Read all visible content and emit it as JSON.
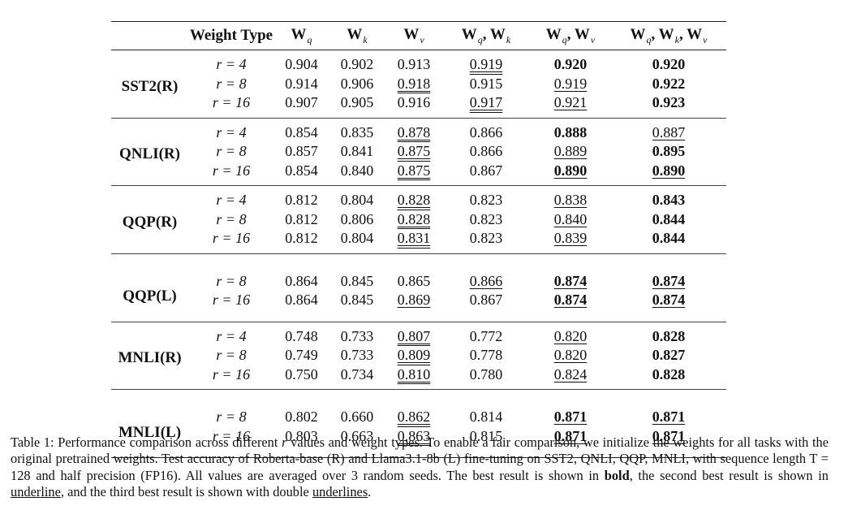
{
  "table": {
    "header": {
      "weight_type": "Weight Type",
      "cols": [
        {
          "main": "W",
          "sub": "q"
        },
        {
          "main": "W",
          "sub": "k"
        },
        {
          "main": "W",
          "sub": "v"
        },
        {
          "main": "W",
          "sub": "q",
          "main2": ", W",
          "sub2": "k"
        },
        {
          "main": "W",
          "sub": "q",
          "main2": ", W",
          "sub2": "v"
        },
        {
          "main": "W",
          "sub": "q",
          "main2": ", W",
          "sub2": "k",
          "main3": ", W",
          "sub3": "v"
        }
      ]
    },
    "groups": [
      {
        "task": "SST2(R)",
        "rows": [
          {
            "r": "r = 4",
            "vals": [
              "0.904",
              "0.902",
              "0.913",
              "0.919",
              "0.920",
              "0.920"
            ],
            "fmt": [
              "",
              "",
              "",
              "u2",
              "b",
              "b"
            ]
          },
          {
            "r": "r = 8",
            "vals": [
              "0.914",
              "0.906",
              "0.918",
              "0.915",
              "0.919",
              "0.922"
            ],
            "fmt": [
              "",
              "",
              "u2",
              "",
              "u1",
              "b"
            ]
          },
          {
            "r": "r = 16",
            "vals": [
              "0.907",
              "0.905",
              "0.916",
              "0.917",
              "0.921",
              "0.923"
            ],
            "fmt": [
              "",
              "",
              "",
              "u2",
              "u1",
              "b"
            ]
          }
        ]
      },
      {
        "task": "QNLI(R)",
        "rows": [
          {
            "r": "r = 4",
            "vals": [
              "0.854",
              "0.835",
              "0.878",
              "0.866",
              "0.888",
              "0.887"
            ],
            "fmt": [
              "",
              "",
              "u2",
              "",
              "b",
              "u1"
            ]
          },
          {
            "r": "r = 8",
            "vals": [
              "0.857",
              "0.841",
              "0.875",
              "0.866",
              "0.889",
              "0.895"
            ],
            "fmt": [
              "",
              "",
              "u2",
              "",
              "u1",
              "b"
            ]
          },
          {
            "r": "r = 16",
            "vals": [
              "0.854",
              "0.840",
              "0.875",
              "0.867",
              "0.890",
              "0.890"
            ],
            "fmt": [
              "",
              "",
              "u2",
              "",
              "bu",
              "bu"
            ]
          }
        ]
      },
      {
        "task": "QQP(R)",
        "rows": [
          {
            "r": "r = 4",
            "vals": [
              "0.812",
              "0.804",
              "0.828",
              "0.823",
              "0.838",
              "0.843"
            ],
            "fmt": [
              "",
              "",
              "u2",
              "",
              "u1",
              "b"
            ]
          },
          {
            "r": "r = 8",
            "vals": [
              "0.812",
              "0.806",
              "0.828",
              "0.823",
              "0.840",
              "0.844"
            ],
            "fmt": [
              "",
              "",
              "u2",
              "",
              "u1",
              "b"
            ]
          },
          {
            "r": "r = 16",
            "vals": [
              "0.812",
              "0.804",
              "0.831",
              "0.823",
              "0.839",
              "0.844"
            ],
            "fmt": [
              "",
              "",
              "u2",
              "",
              "u1",
              "b"
            ]
          }
        ]
      },
      {
        "task": "QQP(L)",
        "gap": true,
        "rows": [
          {
            "r": "r = 8",
            "vals": [
              "0.864",
              "0.845",
              "0.865",
              "0.866",
              "0.874",
              "0.874"
            ],
            "fmt": [
              "",
              "",
              "",
              "u1",
              "bu",
              "bu"
            ]
          },
          {
            "r": "r = 16",
            "vals": [
              "0.864",
              "0.845",
              "0.869",
              "0.867",
              "0.874",
              "0.874"
            ],
            "fmt": [
              "",
              "",
              "u1",
              "",
              "bu",
              "bu"
            ]
          }
        ]
      },
      {
        "task": "MNLI(R)",
        "rows": [
          {
            "r": "r = 4",
            "vals": [
              "0.748",
              "0.733",
              "0.807",
              "0.772",
              "0.820",
              "0.828"
            ],
            "fmt": [
              "",
              "",
              "u2",
              "",
              "u1",
              "b"
            ]
          },
          {
            "r": "r = 8",
            "vals": [
              "0.749",
              "0.733",
              "0.809",
              "0.778",
              "0.820",
              "0.827"
            ],
            "fmt": [
              "",
              "",
              "u2",
              "",
              "u1",
              "b"
            ]
          },
          {
            "r": "r = 16",
            "vals": [
              "0.750",
              "0.734",
              "0.810",
              "0.780",
              "0.824",
              "0.828"
            ],
            "fmt": [
              "",
              "",
              "u2",
              "",
              "u1",
              "b"
            ]
          }
        ]
      },
      {
        "task": "MNLI(L)",
        "gap": true,
        "rows": [
          {
            "r": "r = 8",
            "vals": [
              "0.802",
              "0.660",
              "0.862",
              "0.814",
              "0.871",
              "0.871"
            ],
            "fmt": [
              "",
              "",
              "u2",
              "",
              "bu",
              "bu"
            ]
          },
          {
            "r": "r = 16",
            "vals": [
              "0.803",
              "0.663",
              "0.863",
              "0.815",
              "0.871",
              "0.871"
            ],
            "fmt": [
              "",
              "",
              "u2",
              "",
              "bu",
              "bu"
            ]
          }
        ]
      }
    ]
  },
  "caption": {
    "p1": "Table 1: Performance comparison across different ",
    "r": "r",
    "p2": " values and weight types. To enable a fair comparison, we initialize the weights for all tasks with the original pretrained weights. Test accuracy of Roberta-base (R) and Llama3.1-8b (L) fine-tuning on SST2, QNLI, QQP, MNLI, with sequence length T = 128 and half precision (FP16). All values are averaged over 3 random seeds. The best result is shown in ",
    "bold": "bold",
    "p3": ", the second best result is shown in ",
    "underline": "underline",
    "p4": ", and the third best result is shown with double ",
    "underlines": "underlines",
    "p5": "."
  }
}
